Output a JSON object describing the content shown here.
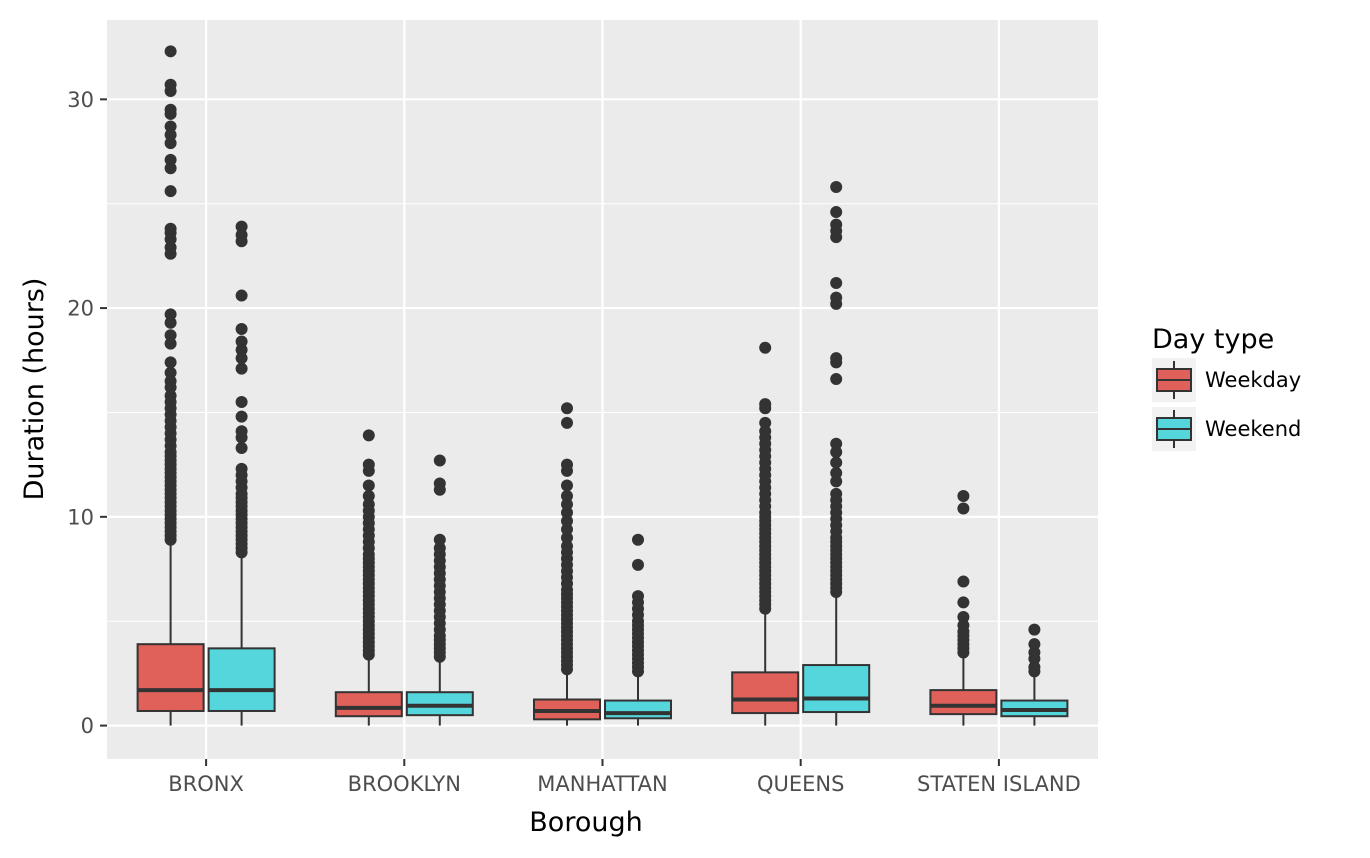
{
  "chart_data": {
    "type": "boxplot",
    "xlabel": "Borough",
    "ylabel": "Duration (hours)",
    "ylim": [
      -1.6,
      33.8
    ],
    "yticks": [
      0,
      10,
      20,
      30
    ],
    "yticks_text": [
      "0",
      "10",
      "20",
      "30"
    ],
    "grid": true,
    "legend_position": "right",
    "legend": {
      "title": "Day type",
      "entries": [
        {
          "name": "Weekday",
          "color": "#E0605A"
        },
        {
          "name": "Weekend",
          "color": "#55D5DC"
        }
      ]
    },
    "categories": [
      "BRONX",
      "BROOKLYN",
      "MANHATTAN",
      "QUEENS",
      "STATEN ISLAND"
    ],
    "series": [
      {
        "name": "Weekday",
        "color": "#E0605A",
        "boxes": [
          {
            "lower": 0,
            "q1": 0.7,
            "median": 1.7,
            "q3": 3.9,
            "upper": 8.7,
            "outliers": [
              8.9,
              9.1,
              9.3,
              9.5,
              9.7,
              9.9,
              10.1,
              10.3,
              10.5,
              10.7,
              10.9,
              11.1,
              11.3,
              11.5,
              11.7,
              11.9,
              12.1,
              12.3,
              12.5,
              12.7,
              12.9,
              13.1,
              13.4,
              13.7,
              14.0,
              14.3,
              14.6,
              14.9,
              15.2,
              15.5,
              15.8,
              16.2,
              16.5,
              16.9,
              17.4,
              18.3,
              18.7,
              19.3,
              19.7,
              22.6,
              22.9,
              23.3,
              23.6,
              23.8,
              25.6,
              26.7,
              27.1,
              27.9,
              28.3,
              28.7,
              29.3,
              29.5,
              30.4,
              30.7,
              32.3
            ]
          },
          {
            "lower": 0,
            "q1": 0.45,
            "median": 0.85,
            "q3": 1.6,
            "upper": 3.3,
            "outliers": [
              3.4,
              3.6,
              3.8,
              4.0,
              4.2,
              4.4,
              4.6,
              4.8,
              5.0,
              5.2,
              5.4,
              5.6,
              5.8,
              6.0,
              6.2,
              6.4,
              6.6,
              6.8,
              7.0,
              7.2,
              7.4,
              7.6,
              7.8,
              8.0,
              8.2,
              8.5,
              8.8,
              9.1,
              9.4,
              9.7,
              10.0,
              10.3,
              10.6,
              11.0,
              11.5,
              12.2,
              12.5,
              13.9
            ]
          },
          {
            "lower": 0,
            "q1": 0.3,
            "median": 0.7,
            "q3": 1.25,
            "upper": 2.6,
            "outliers": [
              2.7,
              2.9,
              3.1,
              3.3,
              3.5,
              3.7,
              3.9,
              4.1,
              4.3,
              4.5,
              4.7,
              4.9,
              5.1,
              5.3,
              5.5,
              5.7,
              5.9,
              6.1,
              6.3,
              6.5,
              6.8,
              7.1,
              7.4,
              7.7,
              8.0,
              8.3,
              8.6,
              9.0,
              9.4,
              9.8,
              10.2,
              10.6,
              11.0,
              11.5,
              12.2,
              12.5,
              14.5,
              15.2
            ]
          },
          {
            "lower": 0,
            "q1": 0.6,
            "median": 1.25,
            "q3": 2.55,
            "upper": 5.5,
            "outliers": [
              5.6,
              5.8,
              6.0,
              6.2,
              6.4,
              6.6,
              6.8,
              7.0,
              7.2,
              7.4,
              7.6,
              7.8,
              8.0,
              8.2,
              8.4,
              8.6,
              8.8,
              9.0,
              9.2,
              9.4,
              9.6,
              9.8,
              10.0,
              10.2,
              10.5,
              10.8,
              11.1,
              11.4,
              11.7,
              12.0,
              12.3,
              12.6,
              12.9,
              13.2,
              13.5,
              13.8,
              14.1,
              14.5,
              15.2,
              15.4,
              18.1
            ]
          },
          {
            "lower": 0,
            "q1": 0.55,
            "median": 0.95,
            "q3": 1.7,
            "upper": 3.4,
            "outliers": [
              3.5,
              3.7,
              3.9,
              4.1,
              4.3,
              4.5,
              4.8,
              5.2,
              5.9,
              6.9,
              10.4,
              11.0
            ]
          }
        ]
      },
      {
        "name": "Weekend",
        "color": "#55D5DC",
        "boxes": [
          {
            "lower": 0,
            "q1": 0.7,
            "median": 1.7,
            "q3": 3.7,
            "upper": 8.2,
            "outliers": [
              8.3,
              8.5,
              8.7,
              8.9,
              9.1,
              9.3,
              9.5,
              9.7,
              9.9,
              10.1,
              10.3,
              10.5,
              10.7,
              10.9,
              11.1,
              11.4,
              11.7,
              12.0,
              12.3,
              13.3,
              13.8,
              14.1,
              14.8,
              15.5,
              17.1,
              17.6,
              18.0,
              18.4,
              19.0,
              20.6,
              23.2,
              23.5,
              23.9
            ]
          },
          {
            "lower": 0,
            "q1": 0.5,
            "median": 0.95,
            "q3": 1.6,
            "upper": 3.2,
            "outliers": [
              3.3,
              3.5,
              3.7,
              3.9,
              4.1,
              4.3,
              4.6,
              4.9,
              5.2,
              5.5,
              5.8,
              6.1,
              6.4,
              6.7,
              7.0,
              7.3,
              7.6,
              7.9,
              8.2,
              8.5,
              8.9,
              11.3,
              11.6,
              12.7
            ]
          },
          {
            "lower": 0,
            "q1": 0.35,
            "median": 0.6,
            "q3": 1.2,
            "upper": 2.5,
            "outliers": [
              2.6,
              2.8,
              3.0,
              3.2,
              3.4,
              3.6,
              3.8,
              4.0,
              4.2,
              4.4,
              4.6,
              4.8,
              5.0,
              5.3,
              5.6,
              5.9,
              6.2,
              7.7,
              8.9
            ]
          },
          {
            "lower": 0,
            "q1": 0.65,
            "median": 1.3,
            "q3": 2.9,
            "upper": 6.3,
            "outliers": [
              6.4,
              6.6,
              6.8,
              7.0,
              7.2,
              7.4,
              7.6,
              7.8,
              8.0,
              8.2,
              8.4,
              8.6,
              8.8,
              9.0,
              9.3,
              9.6,
              9.9,
              10.2,
              10.5,
              10.8,
              11.1,
              11.7,
              12.1,
              12.6,
              13.1,
              13.5,
              16.6,
              17.4,
              17.6,
              20.2,
              20.5,
              21.2,
              23.4,
              23.7,
              24.0,
              24.6,
              25.8
            ]
          },
          {
            "lower": 0,
            "q1": 0.45,
            "median": 0.75,
            "q3": 1.2,
            "upper": 2.5,
            "outliers": [
              2.6,
              2.8,
              3.2,
              3.5,
              3.9,
              4.6
            ]
          }
        ]
      }
    ]
  }
}
